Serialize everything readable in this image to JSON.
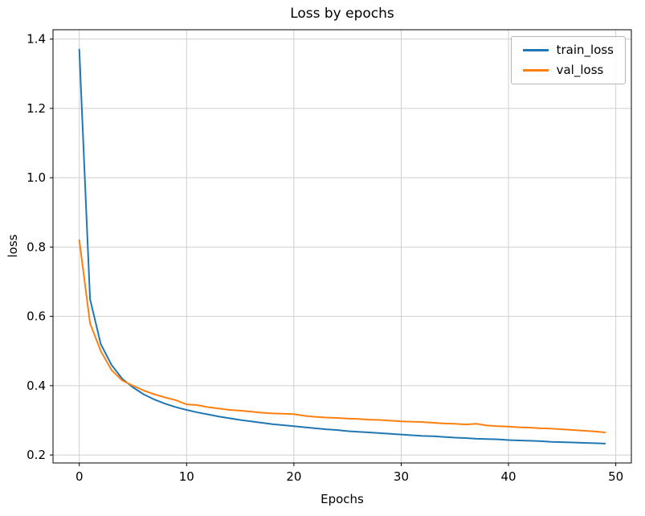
{
  "chart_data": {
    "type": "line",
    "title": "Loss by epochs",
    "xlabel": "Epochs",
    "ylabel": "loss",
    "grid": true,
    "legend_position": "upper right",
    "xlim": [
      -2.45,
      51.45
    ],
    "ylim": [
      0.177,
      1.427
    ],
    "xticks": [
      0,
      10,
      20,
      30,
      40,
      50
    ],
    "xtick_labels": [
      "0",
      "10",
      "20",
      "30",
      "40",
      "50"
    ],
    "yticks": [
      0.2,
      0.4,
      0.6,
      0.8,
      1.0,
      1.2,
      1.4
    ],
    "ytick_labels": [
      "0.2",
      "0.4",
      "0.6",
      "0.8",
      "1.0",
      "1.2",
      "1.4"
    ],
    "x": [
      0,
      1,
      2,
      3,
      4,
      5,
      6,
      7,
      8,
      9,
      10,
      11,
      12,
      13,
      14,
      15,
      16,
      17,
      18,
      19,
      20,
      21,
      22,
      23,
      24,
      25,
      26,
      27,
      28,
      29,
      30,
      31,
      32,
      33,
      34,
      35,
      36,
      37,
      38,
      39,
      40,
      41,
      42,
      43,
      44,
      45,
      46,
      47,
      48,
      49
    ],
    "series": [
      {
        "name": "train_loss",
        "color": "#1f77b4",
        "values": [
          1.37,
          0.65,
          0.52,
          0.46,
          0.42,
          0.395,
          0.375,
          0.36,
          0.348,
          0.338,
          0.33,
          0.323,
          0.317,
          0.311,
          0.306,
          0.301,
          0.297,
          0.293,
          0.289,
          0.286,
          0.283,
          0.28,
          0.277,
          0.274,
          0.272,
          0.269,
          0.267,
          0.265,
          0.263,
          0.261,
          0.259,
          0.257,
          0.255,
          0.254,
          0.252,
          0.25,
          0.249,
          0.247,
          0.246,
          0.245,
          0.243,
          0.242,
          0.241,
          0.24,
          0.238,
          0.237,
          0.236,
          0.235,
          0.234,
          0.233
        ]
      },
      {
        "name": "val_loss",
        "color": "#ff7f0e",
        "values": [
          0.82,
          0.58,
          0.5,
          0.445,
          0.415,
          0.4,
          0.386,
          0.375,
          0.366,
          0.358,
          0.346,
          0.344,
          0.338,
          0.334,
          0.33,
          0.328,
          0.325,
          0.322,
          0.32,
          0.319,
          0.318,
          0.313,
          0.31,
          0.308,
          0.307,
          0.305,
          0.304,
          0.302,
          0.301,
          0.299,
          0.297,
          0.296,
          0.295,
          0.293,
          0.291,
          0.29,
          0.288,
          0.29,
          0.285,
          0.283,
          0.282,
          0.28,
          0.279,
          0.277,
          0.276,
          0.274,
          0.272,
          0.27,
          0.268,
          0.265
        ]
      }
    ]
  }
}
